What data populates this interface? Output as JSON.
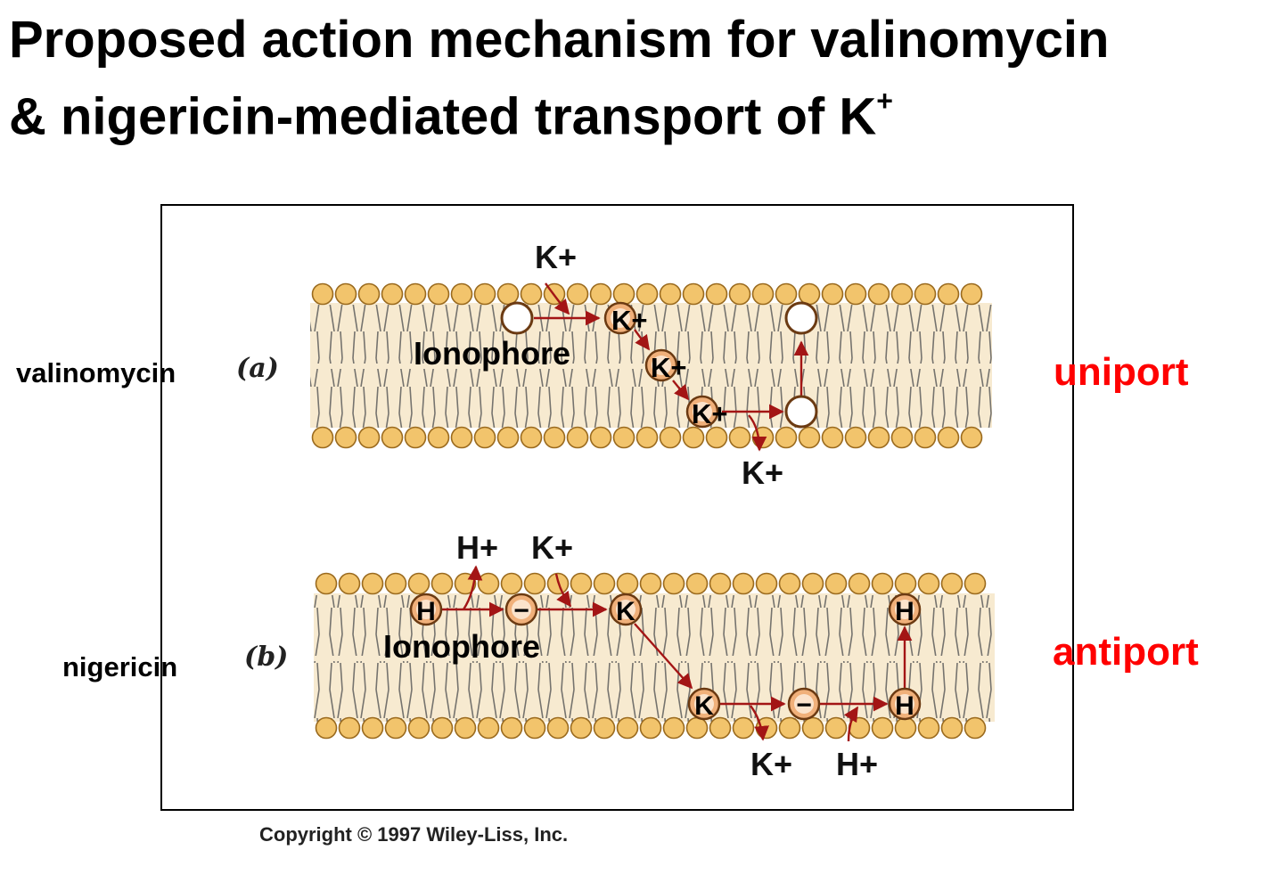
{
  "title": {
    "line1": "Proposed action mechanism for valinomycin",
    "line2_text": "& nigericin-mediated transport of K",
    "line2_sup": "+"
  },
  "panel_a": {
    "letter": "(a)",
    "side_label": "valinomycin",
    "transport_type": "uniport",
    "top_ion": "K+",
    "bottom_ion": "K+",
    "ionophore_label": "Ionophore",
    "carrier_labels": [
      "K+",
      "K+",
      "K+"
    ]
  },
  "panel_b": {
    "letter": "(b)",
    "side_label": "nigericin",
    "transport_type": "antiport",
    "top_ions": [
      "H+",
      "K+"
    ],
    "bottom_ions": [
      "K+",
      "H+"
    ],
    "ionophore_label": "Ionophore",
    "carrier_labels": [
      "H",
      "−",
      "K",
      "K",
      "−",
      "H",
      "H"
    ]
  },
  "copyright": "Copyright © 1997 Wiley-Liss, Inc.",
  "colors": {
    "transport_type": "#ff0000",
    "lipid_head": "#f2c46c",
    "lipid_head_stroke": "#9a6a1e",
    "membrane_core": "#f7ead0",
    "arrow": "#a31515",
    "carrier_ring": "#f0b07a"
  }
}
